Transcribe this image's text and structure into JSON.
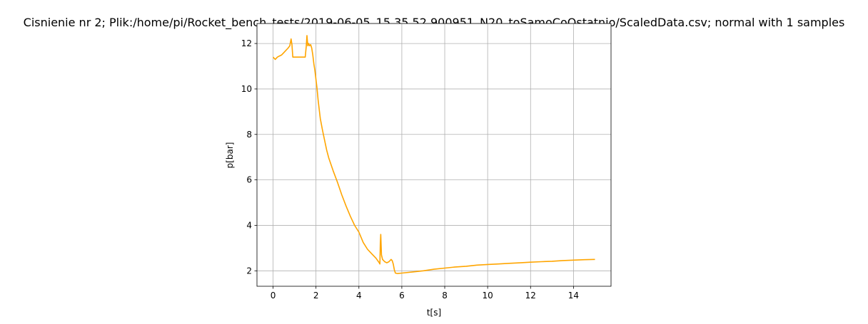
{
  "chart_data": {
    "type": "line",
    "title": "Cisnienie nr 2; Plik:/home/pi/Rocket_bench_tests/2019-06-05_15.35.52.900951_N20_toSamoCoOstatnio/ScaledData.csv; normal with 1 samples",
    "xlabel": "t[s]",
    "ylabel": "p[bar]",
    "xlim": [
      -0.75,
      15.75
    ],
    "ylim": [
      1.32,
      12.88
    ],
    "xticks": [
      0,
      2,
      4,
      6,
      8,
      10,
      12,
      14
    ],
    "yticks": [
      2,
      4,
      6,
      8,
      10,
      12
    ],
    "xtick_labels": [
      "0",
      "2",
      "4",
      "6",
      "8",
      "10",
      "12",
      "14"
    ],
    "ytick_labels": [
      "2",
      "4",
      "6",
      "8",
      "10",
      "12"
    ],
    "grid": true,
    "legend": "none",
    "series": [
      {
        "color": "#ffa500",
        "x": [
          0.0,
          0.1,
          0.2,
          0.3,
          0.4,
          0.5,
          0.6,
          0.7,
          0.78,
          0.84,
          0.88,
          0.92,
          0.96,
          1.0,
          1.1,
          1.2,
          1.3,
          1.4,
          1.5,
          1.55,
          1.58,
          1.62,
          1.66,
          1.7,
          1.75,
          1.8,
          1.85,
          1.9,
          1.95,
          2.0,
          2.05,
          2.1,
          2.15,
          2.2,
          2.3,
          2.4,
          2.5,
          2.6,
          2.8,
          3.0,
          3.2,
          3.4,
          3.6,
          3.8,
          4.0,
          4.2,
          4.4,
          4.6,
          4.8,
          4.95,
          4.98,
          5.0,
          5.02,
          5.05,
          5.1,
          5.2,
          5.3,
          5.4,
          5.5,
          5.55,
          5.6,
          5.65,
          5.7,
          5.8,
          6.0,
          6.5,
          7.0,
          7.5,
          8.0,
          8.5,
          9.0,
          9.5,
          10.0,
          10.5,
          11.0,
          11.5,
          12.0,
          12.5,
          13.0,
          13.5,
          14.0,
          14.5,
          15.0
        ],
        "y": [
          11.4,
          11.3,
          11.4,
          11.45,
          11.5,
          11.6,
          11.7,
          11.8,
          11.9,
          12.2,
          11.95,
          11.4,
          11.4,
          11.4,
          11.4,
          11.4,
          11.4,
          11.4,
          11.4,
          11.9,
          12.35,
          11.9,
          12.0,
          11.9,
          11.95,
          11.8,
          11.5,
          11.1,
          10.8,
          10.4,
          10.0,
          9.5,
          9.1,
          8.7,
          8.2,
          7.75,
          7.3,
          6.95,
          6.4,
          5.9,
          5.35,
          4.85,
          4.4,
          4.0,
          3.7,
          3.25,
          2.95,
          2.75,
          2.55,
          2.35,
          2.3,
          3.2,
          3.6,
          2.7,
          2.5,
          2.4,
          2.35,
          2.4,
          2.5,
          2.45,
          2.3,
          2.05,
          1.9,
          1.88,
          1.9,
          1.95,
          2.0,
          2.07,
          2.12,
          2.17,
          2.2,
          2.25,
          2.28,
          2.3,
          2.33,
          2.35,
          2.38,
          2.4,
          2.42,
          2.45,
          2.47,
          2.49,
          2.5
        ]
      }
    ]
  }
}
